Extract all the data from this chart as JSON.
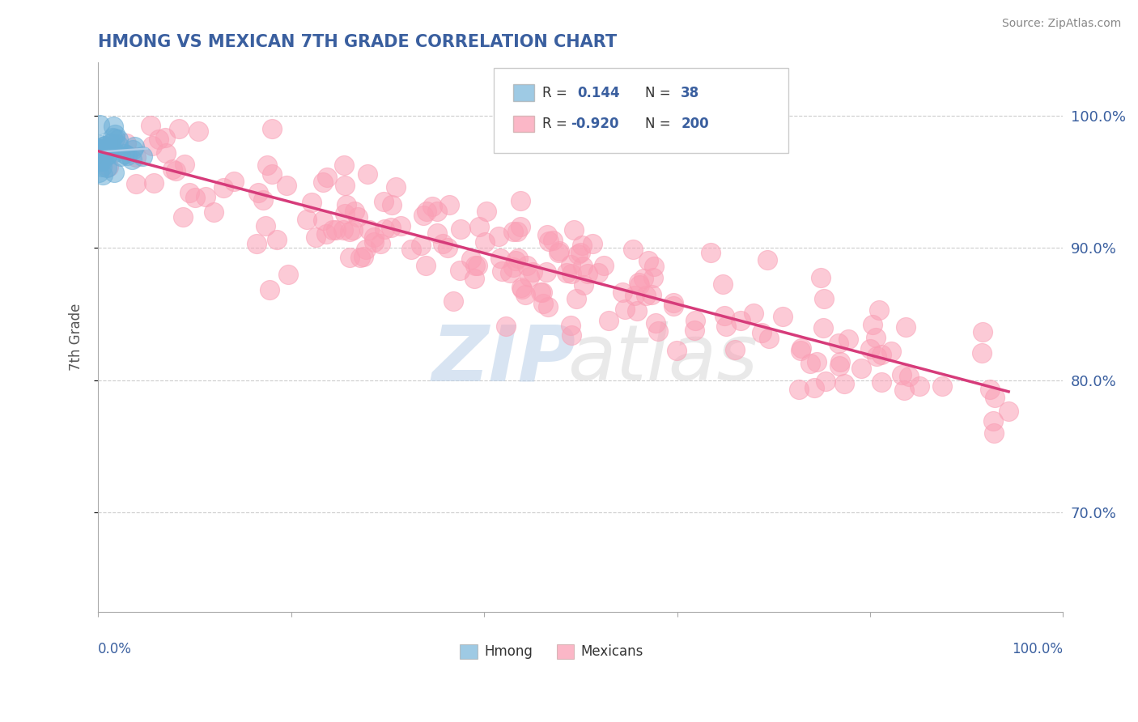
{
  "title": "HMONG VS MEXICAN 7TH GRADE CORRELATION CHART",
  "source": "Source: ZipAtlas.com",
  "ylabel": "7th Grade",
  "ytick_labels": [
    "70.0%",
    "80.0%",
    "90.0%",
    "100.0%"
  ],
  "ytick_values": [
    0.7,
    0.8,
    0.9,
    1.0
  ],
  "ymin": 0.625,
  "ymax": 1.04,
  "xmin": 0.0,
  "xmax": 1.0,
  "hmong_color": "#6baed6",
  "mexican_color": "#fa9fb5",
  "regression_line_color": "#d63b7a",
  "hmong_reg_color": "#aecde8",
  "background_color": "#ffffff",
  "grid_color": "#cccccc",
  "title_color": "#3a5f9f",
  "label_color": "#3a5f9f",
  "watermark_zip_color": "#b8cfe8",
  "watermark_atlas_color": "#d8d8d8",
  "bottom_legend_hmong": "Hmong",
  "bottom_legend_mexicans": "Mexicans",
  "hmong_R": 0.144,
  "hmong_N": 38,
  "mexican_R": -0.92,
  "mexican_N": 200
}
